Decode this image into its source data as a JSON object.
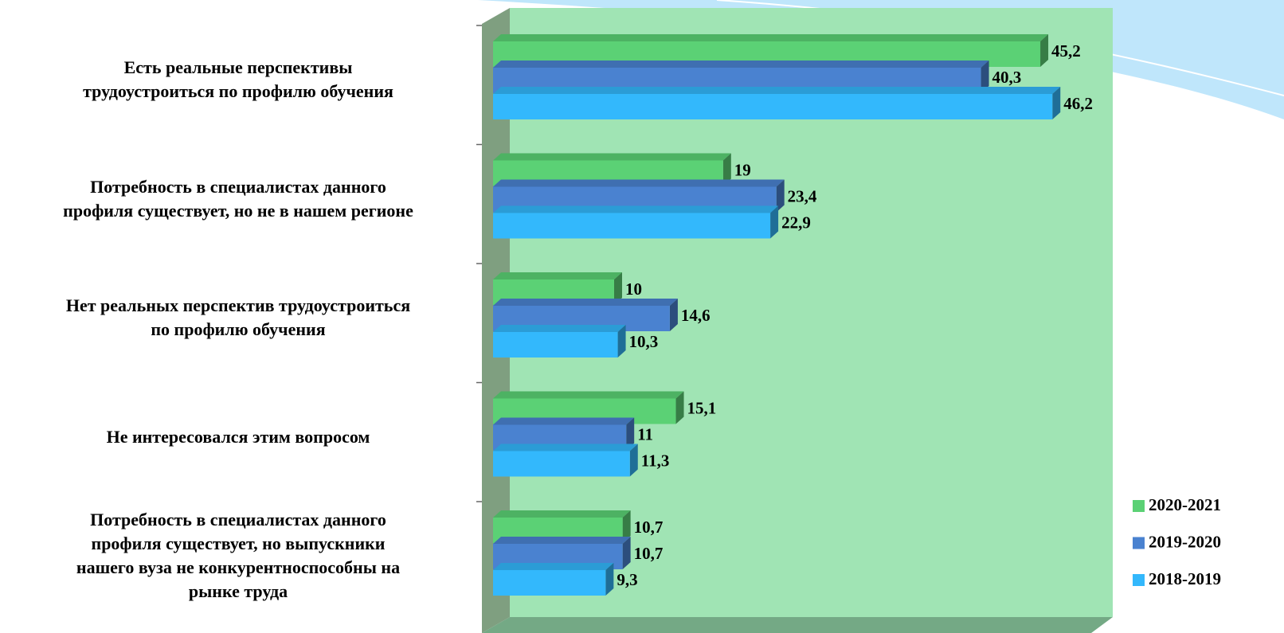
{
  "chart_data": {
    "type": "bar",
    "orientation": "horizontal",
    "categories": [
      "Есть реальные перспективы\nтрудоустроиться по профилю обучения",
      "Потребность в специалистах данного\nпрофиля существует, но не в нашем регионе",
      "Нет реальных перспектив трудоустроиться\nпо профилю обучения",
      "Не интересовался этим вопросом",
      "Потребность в специалистах данного\nпрофиля существует, но выпускники\nнашего вуза не конкурентноспособны на\nрынке труда"
    ],
    "series": [
      {
        "name": "2020-2021",
        "color": "#5bd175",
        "values": [
          45.2,
          19,
          10,
          15.1,
          10.7
        ],
        "value_labels": [
          "45,2",
          "19",
          "10",
          "15,1",
          "10,7"
        ]
      },
      {
        "name": "2019-2020",
        "color": "#4a82d0",
        "values": [
          40.3,
          23.4,
          14.6,
          11,
          10.7
        ],
        "value_labels": [
          "40,3",
          "23,4",
          "14,6",
          "11",
          "10,7"
        ]
      },
      {
        "name": "2018-2019",
        "color": "#33b8fc",
        "values": [
          46.2,
          22.9,
          10.3,
          11.3,
          9.3
        ],
        "value_labels": [
          "46,2",
          "22,9",
          "10,3",
          "11,3",
          "9,3"
        ]
      }
    ],
    "xlim": [
      0,
      50
    ],
    "legend": "right"
  }
}
